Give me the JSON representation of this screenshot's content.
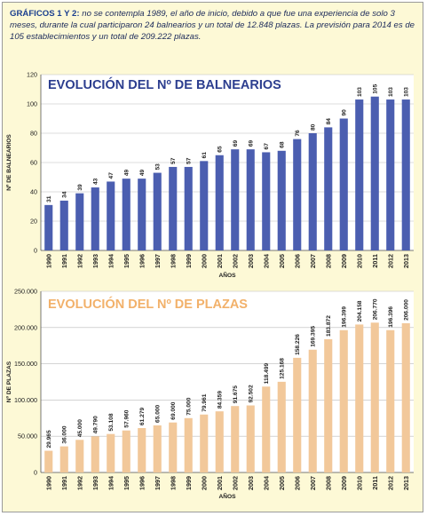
{
  "note": {
    "lead": "GRÁFICOS 1 Y 2:",
    "text": "no se contempla 1989, el año de inicio, debido a que fue una experiencia de solo 3 meses, durante la cual participaron 24 balnearios y un total de 12.848 plazas. La previsión para 2014 es de 105 establecimientos y un total de 209.222 plazas."
  },
  "chart_data": [
    {
      "type": "bar",
      "title": "EVOLUCIÓN DEL Nº DE BALNEARIOS",
      "xlabel": "AÑOS",
      "ylabel": "Nº DE BALNEARIOS",
      "ylim": [
        0,
        120
      ],
      "yticks": [
        "0",
        "20",
        "40",
        "60",
        "80",
        "100",
        "120"
      ],
      "categories": [
        "1990",
        "1991",
        "1992",
        "1993",
        "1994",
        "1995",
        "1996",
        "1997",
        "1998",
        "1999",
        "2000",
        "2001",
        "2002",
        "2003",
        "2004",
        "2005",
        "2006",
        "2007",
        "2008",
        "2009",
        "2010",
        "2011",
        "2012",
        "2013"
      ],
      "values": [
        31,
        34,
        39,
        43,
        47,
        49,
        49,
        53,
        57,
        57,
        61,
        65,
        69,
        69,
        67,
        68,
        76,
        80,
        84,
        90,
        103,
        105,
        103,
        103
      ],
      "labels": [
        "31",
        "34",
        "39",
        "43",
        "47",
        "49",
        "49",
        "53",
        "57",
        "57",
        "61",
        "65",
        "69",
        "69",
        "67",
        "68",
        "76",
        "80",
        "84",
        "90",
        "103",
        "105",
        "103",
        "103"
      ],
      "bar_color": "#4b5eb0",
      "grid": true
    },
    {
      "type": "bar",
      "title": "EVOLUCIÓN DEL Nº DE PLAZAS",
      "xlabel": "AÑOS",
      "ylabel": "Nº DE PLAZAS",
      "ylim": [
        0,
        250000
      ],
      "yticks": [
        "0",
        "50.000",
        "100.000",
        "150.000",
        "200.000",
        "250.000"
      ],
      "categories": [
        "1990",
        "1991",
        "1992",
        "1993",
        "1994",
        "1995",
        "1996",
        "1997",
        "1998",
        "1999",
        "2000",
        "2001",
        "2002",
        "2003",
        "2004",
        "2005",
        "2006",
        "2007",
        "2008",
        "2009",
        "2010",
        "2011",
        "2012",
        "2013"
      ],
      "values": [
        29965,
        36000,
        45000,
        49790,
        53108,
        57960,
        61279,
        65000,
        69000,
        75000,
        79961,
        84359,
        91675,
        92502,
        118499,
        125168,
        158226,
        169395,
        183872,
        196399,
        204158,
        206770,
        196396,
        206000
      ],
      "labels": [
        "29.965",
        "36.000",
        "45.000",
        "49.790",
        "53.108",
        "57.960",
        "61.279",
        "65.000",
        "69.000",
        "75.000",
        "79.961",
        "84.359",
        "91.675",
        "92.502",
        "118.499",
        "125.168",
        "158.226",
        "169.395",
        "183.872",
        "196.399",
        "204.158",
        "206.770",
        "196.396",
        "206.000"
      ],
      "bar_color": "#f2c89a",
      "grid": true
    }
  ]
}
